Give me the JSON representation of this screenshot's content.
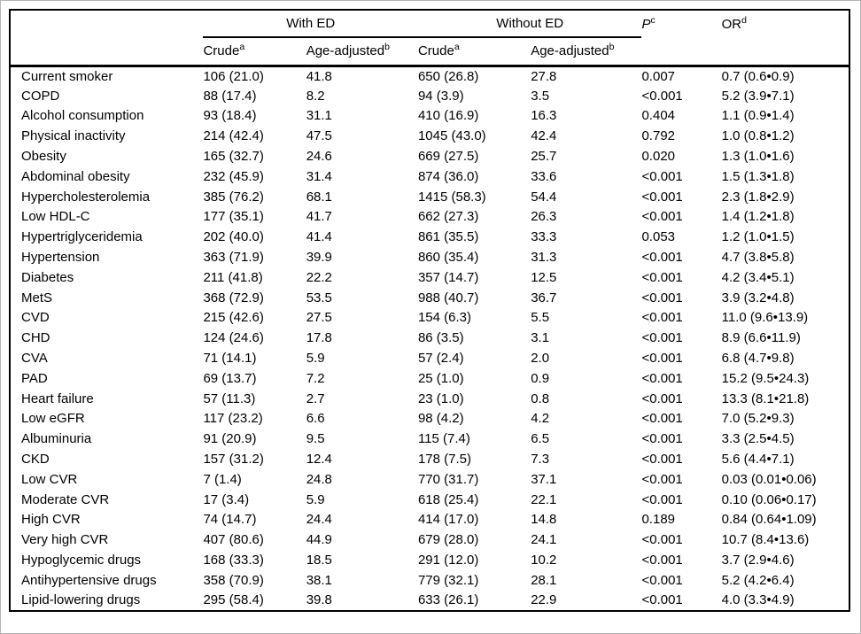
{
  "table": {
    "groups": {
      "with_ed": "With ED",
      "without_ed": "Without ED"
    },
    "sub": {
      "crude": "Crude",
      "crude_sup": "a",
      "age_adjusted": "Age-adjusted",
      "age_adjusted_sup": "b"
    },
    "p_header": {
      "label": "P",
      "sup": "c"
    },
    "or_header": {
      "label": "OR",
      "sup": "d"
    },
    "rows": [
      {
        "label": "Current smoker",
        "wc": "106 (21.0)",
        "wa": "41.8",
        "nc": "650 (26.8)",
        "na": "27.8",
        "p": "0.007",
        "or": "0.7 (0.6•0.9)"
      },
      {
        "label": "COPD",
        "wc": "88 (17.4)",
        "wa": "8.2",
        "nc": "94 (3.9)",
        "na": "3.5",
        "p": "<0.001",
        "or": "5.2 (3.9•7.1)"
      },
      {
        "label": "Alcohol consumption",
        "wc": "93 (18.4)",
        "wa": "31.1",
        "nc": "410 (16.9)",
        "na": "16.3",
        "p": "0.404",
        "or": "1.1 (0.9•1.4)"
      },
      {
        "label": "Physical inactivity",
        "wc": "214 (42.4)",
        "wa": "47.5",
        "nc": "1045 (43.0)",
        "na": "42.4",
        "p": "0.792",
        "or": "1.0 (0.8•1.2)"
      },
      {
        "label": "Obesity",
        "wc": "165 (32.7)",
        "wa": "24.6",
        "nc": "669 (27.5)",
        "na": "25.7",
        "p": "0.020",
        "or": "1.3 (1.0•1.6)"
      },
      {
        "label": "Abdominal obesity",
        "wc": "232 (45.9)",
        "wa": "31.4",
        "nc": "874 (36.0)",
        "na": "33.6",
        "p": "<0.001",
        "or": "1.5 (1.3•1.8)"
      },
      {
        "label": "Hypercholesterolemia",
        "wc": "385 (76.2)",
        "wa": "68.1",
        "nc": "1415 (58.3)",
        "na": "54.4",
        "p": "<0.001",
        "or": "2.3 (1.8•2.9)"
      },
      {
        "label": "Low HDL-C",
        "wc": "177 (35.1)",
        "wa": "41.7",
        "nc": "662 (27.3)",
        "na": "26.3",
        "p": "<0.001",
        "or": "1.4 (1.2•1.8)"
      },
      {
        "label": "Hypertriglyceridemia",
        "wc": "202 (40.0)",
        "wa": "41.4",
        "nc": "861 (35.5)",
        "na": "33.3",
        "p": "0.053",
        "or": "1.2 (1.0•1.5)"
      },
      {
        "label": "Hypertension",
        "wc": "363 (71.9)",
        "wa": "39.9",
        "nc": "860 (35.4)",
        "na": "31.3",
        "p": "<0.001",
        "or": "4.7 (3.8•5.8)"
      },
      {
        "label": "Diabetes",
        "wc": "211 (41.8)",
        "wa": "22.2",
        "nc": "357 (14.7)",
        "na": "12.5",
        "p": "<0.001",
        "or": "4.2 (3.4•5.1)"
      },
      {
        "label": "MetS",
        "wc": "368 (72.9)",
        "wa": "53.5",
        "nc": "988 (40.7)",
        "na": "36.7",
        "p": "<0.001",
        "or": "3.9 (3.2•4.8)"
      },
      {
        "label": "CVD",
        "wc": "215 (42.6)",
        "wa": "27.5",
        "nc": "154 (6.3)",
        "na": "5.5",
        "p": "<0.001",
        "or": "11.0 (9.6•13.9)"
      },
      {
        "label": "CHD",
        "wc": "124 (24.6)",
        "wa": "17.8",
        "nc": "86 (3.5)",
        "na": "3.1",
        "p": "<0.001",
        "or": "8.9 (6.6•11.9)"
      },
      {
        "label": "CVA",
        "wc": "71 (14.1)",
        "wa": "5.9",
        "nc": "57 (2.4)",
        "na": "2.0",
        "p": "<0.001",
        "or": "6.8 (4.7•9.8)"
      },
      {
        "label": "PAD",
        "wc": "69 (13.7)",
        "wa": "7.2",
        "nc": "25 (1.0)",
        "na": "0.9",
        "p": "<0.001",
        "or": "15.2 (9.5•24.3)"
      },
      {
        "label": "Heart failure",
        "wc": "57 (11.3)",
        "wa": "2.7",
        "nc": "23 (1.0)",
        "na": "0.8",
        "p": "<0.001",
        "or": "13.3 (8.1•21.8)"
      },
      {
        "label": "Low eGFR",
        "wc": "117 (23.2)",
        "wa": "6.6",
        "nc": "98 (4.2)",
        "na": "4.2",
        "p": "<0.001",
        "or": "7.0 (5.2•9.3)"
      },
      {
        "label": "Albuminuria",
        "wc": "91 (20.9)",
        "wa": "9.5",
        "nc": "115 (7.4)",
        "na": "6.5",
        "p": "<0.001",
        "or": "3.3 (2.5•4.5)"
      },
      {
        "label": "CKD",
        "wc": "157 (31.2)",
        "wa": "12.4",
        "nc": "178 (7.5)",
        "na": "7.3",
        "p": "<0.001",
        "or": "5.6 (4.4•7.1)"
      },
      {
        "label": "Low CVR",
        "wc": "7 (1.4)",
        "wa": "24.8",
        "nc": "770 (31.7)",
        "na": "37.1",
        "p": "<0.001",
        "or": "0.03 (0.01•0.06)"
      },
      {
        "label": "Moderate CVR",
        "wc": "17 (3.4)",
        "wa": "5.9",
        "nc": "618 (25.4)",
        "na": "22.1",
        "p": "<0.001",
        "or": "0.10 (0.06•0.17)"
      },
      {
        "label": "High CVR",
        "wc": "74 (14.7)",
        "wa": "24.4",
        "nc": "414 (17.0)",
        "na": "14.8",
        "p": "0.189",
        "or": "0.84 (0.64•1.09)"
      },
      {
        "label": "Very high CVR",
        "wc": "407 (80.6)",
        "wa": "44.9",
        "nc": "679 (28.0)",
        "na": "24.1",
        "p": "<0.001",
        "or": "10.7 (8.4•13.6)"
      },
      {
        "label": "Hypoglycemic drugs",
        "wc": "168 (33.3)",
        "wa": "18.5",
        "nc": "291 (12.0)",
        "na": "10.2",
        "p": "<0.001",
        "or": "3.7 (2.9•4.6)"
      },
      {
        "label": "Antihypertensive drugs",
        "wc": "358 (70.9)",
        "wa": "38.1",
        "nc": "779 (32.1)",
        "na": "28.1",
        "p": "<0.001",
        "or": "5.2 (4.2•6.4)"
      },
      {
        "label": "Lipid-lowering drugs",
        "wc": "295 (58.4)",
        "wa": "39.8",
        "nc": "633 (26.1)",
        "na": "22.9",
        "p": "<0.001",
        "or": "4.0 (3.3•4.9)"
      }
    ]
  },
  "colors": {
    "text": "#000000",
    "rule": "#000000",
    "background": "#ffffff",
    "frame": "#b5b5b5"
  }
}
